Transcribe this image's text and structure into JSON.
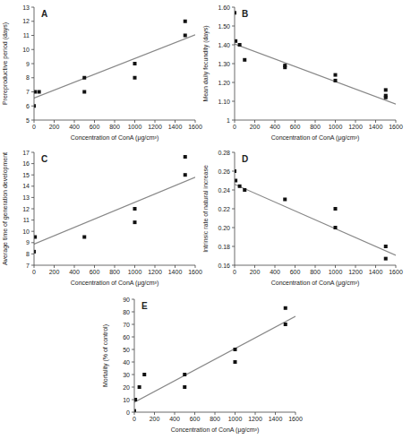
{
  "chart_data": [
    {
      "type": "scatter",
      "title": "A",
      "xlabel": "Concentration of ConA (μg/cm³)",
      "ylabel": "Prereproductive period (days)",
      "xlim": [
        0,
        1600
      ],
      "xticks": [
        0,
        200,
        400,
        600,
        800,
        1000,
        1200,
        1400,
        1600
      ],
      "ylim": [
        5,
        13
      ],
      "yticks": [
        5,
        6,
        7,
        8,
        9,
        10,
        11,
        12,
        13
      ],
      "grid": false,
      "series": [
        {
          "type": "line",
          "color": "#888888",
          "x": [
            0,
            1600
          ],
          "values": [
            6.5616,
            11.0416
          ]
        },
        {
          "type": "scatter",
          "color": "#111111",
          "marker": "square",
          "x": [
            0,
            10,
            50,
            500,
            500,
            1000,
            1000,
            1500,
            1500
          ],
          "values": [
            6.0,
            7.0,
            7.0,
            8.0,
            7.0,
            9.0,
            8.0,
            12.0,
            11.0
          ]
        }
      ]
    },
    {
      "type": "scatter",
      "title": "B",
      "xlabel": "Concentration of ConA (μg/cm³)",
      "ylabel": "Mean daily fecundity (days)",
      "xlim": [
        0,
        1600
      ],
      "xticks": [
        0,
        200,
        400,
        600,
        800,
        1000,
        1200,
        1400,
        1600
      ],
      "ylim": [
        1,
        1.6
      ],
      "yticks": [
        1,
        {
          "value": 1.1,
          "label": "1.10"
        },
        {
          "value": 1.2,
          "label": "1.20"
        },
        {
          "value": 1.3,
          "label": "1.30"
        },
        {
          "value": 1.4,
          "label": "1.40"
        },
        {
          "value": 1.5,
          "label": "1.50"
        },
        {
          "value": 1.6,
          "label": "1.60"
        }
      ],
      "grid": false,
      "series": [
        {
          "type": "line",
          "color": "#888888",
          "x": [
            0,
            1600
          ],
          "values": [
            1.4048,
            1.0848
          ]
        },
        {
          "type": "scatter",
          "color": "#111111",
          "marker": "square",
          "x": [
            0,
            10,
            50,
            100,
            500,
            500,
            1000,
            1000,
            1500,
            1500,
            1500
          ],
          "values": [
            1.57,
            1.42,
            1.4,
            1.32,
            1.29,
            1.28,
            1.24,
            1.21,
            1.16,
            1.13,
            1.12
          ]
        }
      ]
    },
    {
      "type": "scatter",
      "title": "C",
      "xlabel": "Concentration of ConA (μg/cm³)",
      "ylabel": "Average time of generation development",
      "xlim": [
        0,
        1600
      ],
      "xticks": [
        0,
        200,
        400,
        600,
        800,
        1000,
        1200,
        1400,
        1600
      ],
      "ylim": [
        7,
        17
      ],
      "yticks": [
        7,
        8,
        9,
        10,
        11,
        12,
        13,
        14,
        15,
        16,
        17
      ],
      "grid": false,
      "series": [
        {
          "type": "line",
          "color": "#888888",
          "x": [
            0,
            1600
          ],
          "values": [
            8.8679,
            14.7879
          ]
        },
        {
          "type": "scatter",
          "color": "#111111",
          "marker": "square",
          "x": [
            0,
            10,
            500,
            1000,
            1000,
            1500,
            1500
          ],
          "values": [
            8.2,
            9.5,
            9.5,
            10.8,
            12.0,
            16.6,
            15.0
          ]
        }
      ]
    },
    {
      "type": "scatter",
      "title": "D",
      "xlabel": "Concentration of ConA (μg/cm³)",
      "ylabel": "Intrinsic rate of natural increase",
      "xlim": [
        0,
        1600
      ],
      "xticks": [
        0,
        200,
        400,
        600,
        800,
        1000,
        1200,
        1400,
        1600
      ],
      "ylim": [
        0.16,
        0.28
      ],
      "yticks": [
        0.16,
        0.18,
        {
          "value": 0.2,
          "label": "0.20"
        },
        0.22,
        0.24,
        0.26,
        0.28
      ],
      "grid": false,
      "series": [
        {
          "type": "line",
          "color": "#888888",
          "x": [
            0,
            1600
          ],
          "values": [
            0.246,
            0.1705216
          ]
        },
        {
          "type": "scatter",
          "color": "#111111",
          "marker": "square",
          "x": [
            0,
            10,
            50,
            100,
            500,
            1000,
            1000,
            1500,
            1500
          ],
          "values": [
            0.26,
            0.25,
            0.244,
            0.24,
            0.23,
            0.22,
            0.2,
            0.18,
            0.167
          ]
        }
      ]
    },
    {
      "type": "scatter",
      "title": "E",
      "xlabel": "Concentration of ConA (μg/cm³)",
      "ylabel": "Mortality (% of control)",
      "xlim": [
        0,
        1600
      ],
      "xticks": [
        0,
        200,
        400,
        600,
        800,
        1000,
        1200,
        1400,
        1600
      ],
      "ylim": [
        0,
        90
      ],
      "yticks": [
        0,
        10,
        20,
        30,
        40,
        50,
        60,
        70,
        80,
        90
      ],
      "grid": false,
      "series": [
        {
          "type": "line",
          "color": "#888888",
          "x": [
            0,
            1600
          ],
          "values": [
            7.8837,
            76.3637
          ]
        },
        {
          "type": "scatter",
          "color": "#111111",
          "marker": "square",
          "x": [
            0,
            10,
            50,
            100,
            500,
            500,
            1000,
            1000,
            1500,
            1500
          ],
          "values": [
            1.0,
            10.0,
            20.0,
            30.0,
            20.0,
            30.0,
            40.0,
            50.0,
            70.0,
            83.0
          ]
        }
      ]
    }
  ]
}
